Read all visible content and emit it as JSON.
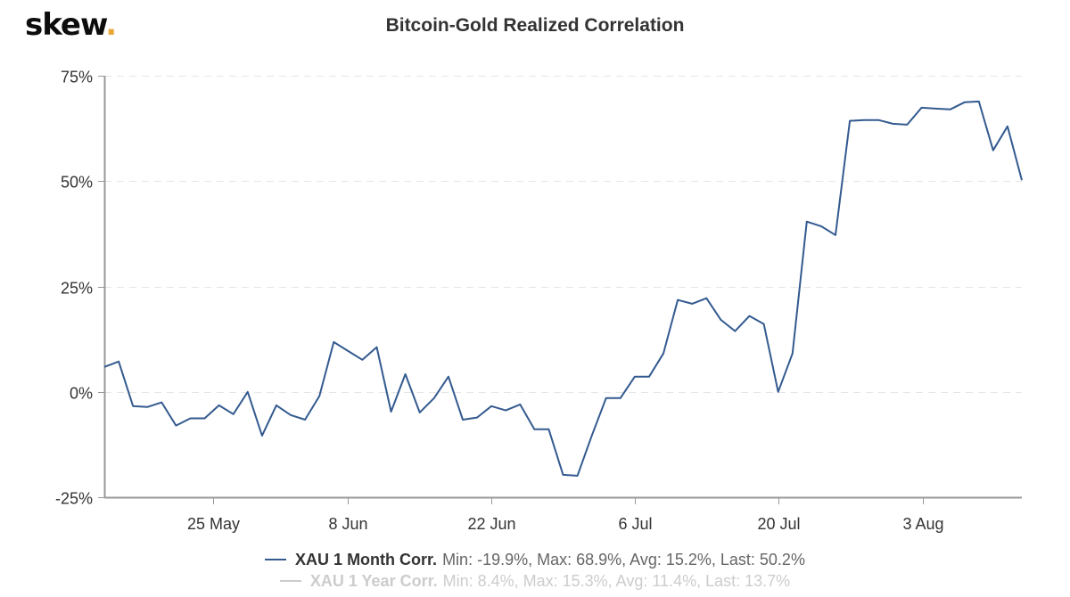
{
  "logo": {
    "text": "skew",
    "dot": "."
  },
  "colors": {
    "series1": "#335a8f",
    "series2": "#cccccc",
    "logo_dot": "#e8a838",
    "grid": "#e6e6e6",
    "axis": "#999999"
  },
  "chart_data": {
    "type": "line",
    "title": "Bitcoin-Gold Realized Correlation",
    "xlabel": "",
    "ylabel": "",
    "ylim": [
      -25,
      75
    ],
    "yticks": [
      -25,
      0,
      25,
      50,
      75
    ],
    "ytick_labels": [
      "-25%",
      "0%",
      "25%",
      "50%",
      "75%"
    ],
    "xtick_labels": [
      "25 May",
      "8 Jun",
      "22 Jun",
      "6 Jul",
      "20 Jul",
      "3 Aug"
    ],
    "xtick_indices": [
      7.6,
      17,
      27,
      37,
      47,
      57.1
    ],
    "grid": true,
    "legend_position": "bottom",
    "series": [
      {
        "name": "XAU 1 Month Corr.",
        "stats": "Min: -19.9%, Max: 68.9%, Avg: 15.2%, Last: 50.2%",
        "visible": true,
        "values": [
          5.9,
          7.2,
          -3.4,
          -3.6,
          -2.5,
          -8.0,
          -6.3,
          -6.3,
          -3.2,
          -5.3,
          0.0,
          -10.4,
          -3.2,
          -5.5,
          -6.6,
          -1.0,
          11.8,
          9.7,
          7.6,
          10.6,
          -4.7,
          4.2,
          -4.9,
          -1.5,
          3.6,
          -6.6,
          -6.1,
          -3.4,
          -4.4,
          -3.0,
          -8.9,
          -8.9,
          -19.7,
          -19.9,
          -10.4,
          -1.5,
          -1.5,
          3.6,
          3.6,
          9.1,
          21.8,
          20.9,
          22.2,
          17.1,
          14.4,
          18.0,
          16.1,
          0.0,
          9.1,
          40.4,
          39.3,
          37.2,
          64.3,
          64.5,
          64.5,
          63.6,
          63.4,
          67.4,
          67.2,
          67.0,
          68.7,
          68.9,
          57.3,
          63.0,
          50.2
        ]
      },
      {
        "name": "XAU 1 Year Corr.",
        "stats": "Min: 8.4%, Max: 15.3%, Avg: 11.4%, Last: 13.7%",
        "visible": false,
        "values": []
      }
    ]
  }
}
